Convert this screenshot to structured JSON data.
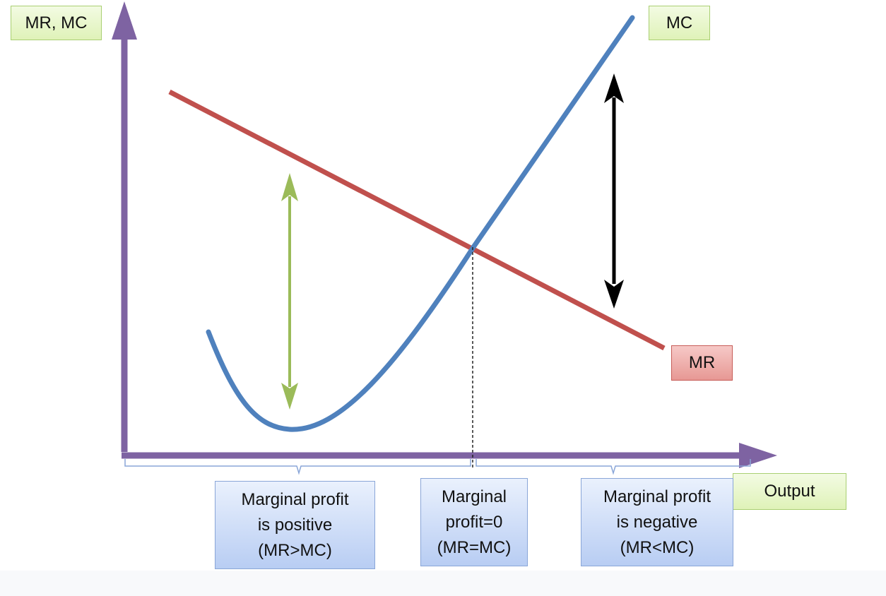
{
  "labels": {
    "y_axis": "MR, MC",
    "mc_curve": "MC",
    "mr_curve": "MR",
    "x_axis": "Output"
  },
  "regions": [
    {
      "line1": "Marginal profit",
      "line2": "is positive",
      "line3": "(MR>MC)"
    },
    {
      "line1": "Marginal",
      "line2": "profit=0",
      "line3": "(MR=MC)"
    },
    {
      "line1": "Marginal profit",
      "line2": "is negative",
      "line3": "(MR<MC)"
    }
  ],
  "colors": {
    "axis": "#7e63a2",
    "mc": "#4f81bd",
    "mr": "#c0504d",
    "positive_arrow": "#9bbb59",
    "negative_arrow": "#000000",
    "brace": "#8aa6d8"
  }
}
